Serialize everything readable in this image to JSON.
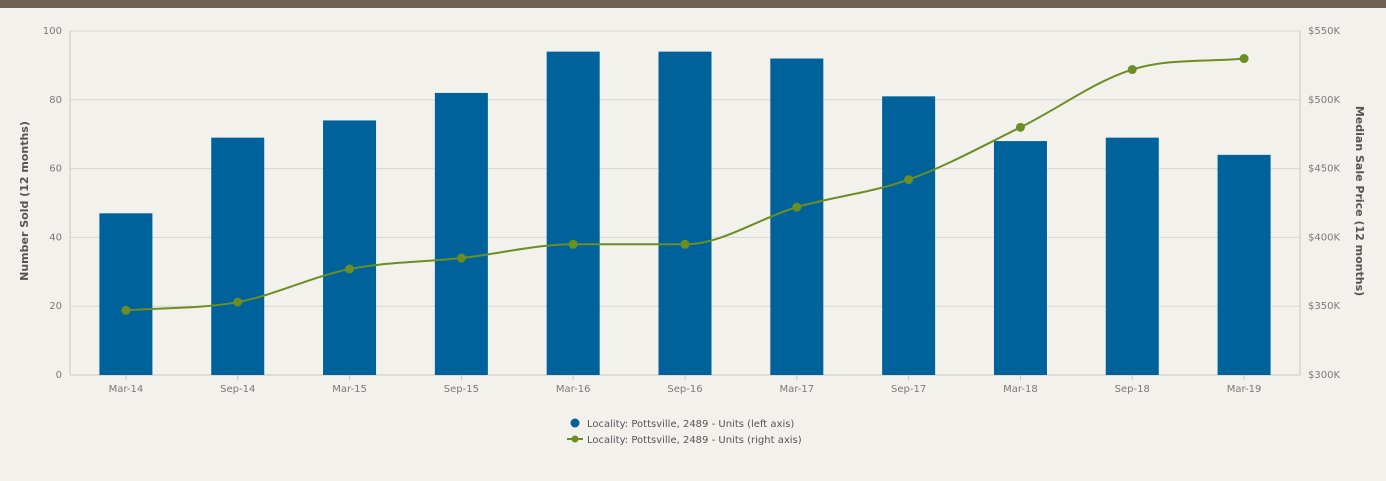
{
  "chart_data": {
    "type": "bar+line",
    "categories": [
      "Mar-14",
      "Sep-14",
      "Mar-15",
      "Sep-15",
      "Mar-16",
      "Sep-16",
      "Mar-17",
      "Sep-17",
      "Mar-18",
      "Sep-18",
      "Mar-19"
    ],
    "series": [
      {
        "name": "Locality: Pottsville, 2489 - Units (left axis)",
        "type": "bar",
        "axis": "left",
        "color": "#00629b",
        "values": [
          47,
          69,
          74,
          82,
          94,
          94,
          92,
          81,
          68,
          69,
          64
        ]
      },
      {
        "name": "Locality: Pottsville, 2489 - Units (right axis)",
        "type": "line",
        "axis": "right",
        "color": "#6b8e23",
        "values": [
          347000,
          353000,
          377000,
          385000,
          395000,
          395000,
          422000,
          442000,
          480000,
          522000,
          530000
        ]
      }
    ],
    "ylabel": "Number Sold (12 months)",
    "y2label": "Median Sale Price (12 months)",
    "ylim": [
      0,
      100
    ],
    "y2lim": [
      300000,
      550000
    ],
    "yticks": [
      "0",
      "20",
      "40",
      "60",
      "80",
      "100"
    ],
    "y2ticks": [
      "$300K",
      "$350K",
      "$400K",
      "$450K",
      "$500K",
      "$550K"
    ],
    "grid": true,
    "legend_position": "bottom-center"
  }
}
